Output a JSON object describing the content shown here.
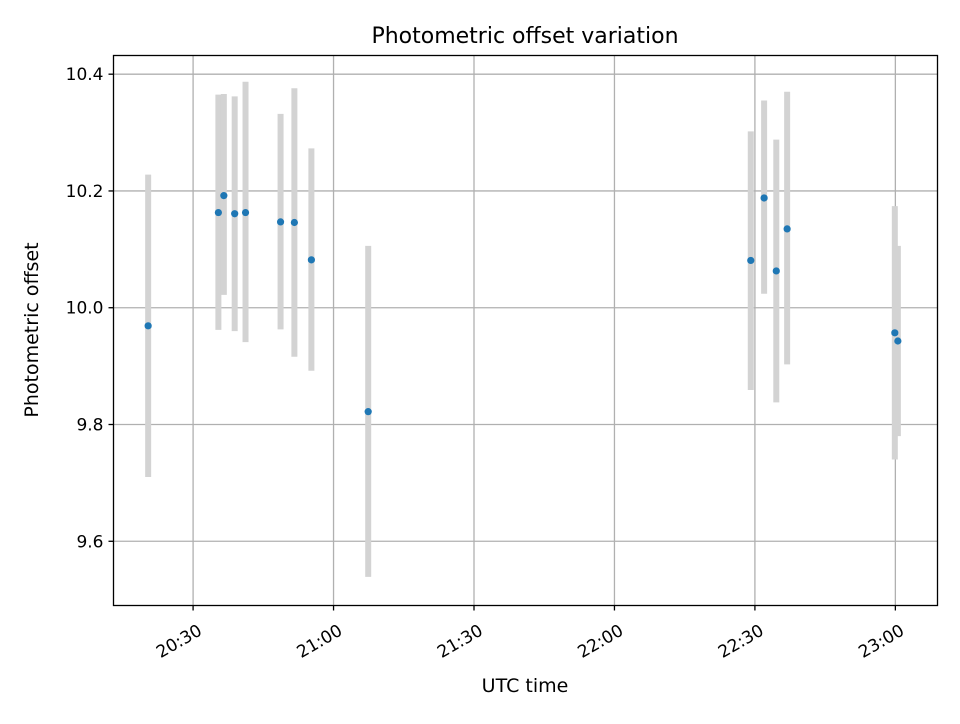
{
  "chart_data": {
    "type": "scatter",
    "title": "Photometric offset variation",
    "xlabel": "UTC time",
    "ylabel": "Photometric offset",
    "xlim": [
      "20:13",
      "23:09"
    ],
    "ylim": [
      9.49,
      10.432
    ],
    "x_ticks": [
      "20:30",
      "21:00",
      "21:30",
      "22:00",
      "22:30",
      "23:00"
    ],
    "y_ticks": [
      9.6,
      9.8,
      10.0,
      10.2,
      10.4
    ],
    "grid": true,
    "colors": {
      "points": "#1f77b4",
      "errorbars": "#d3d3d3",
      "grid": "#b0b0b0"
    },
    "points": [
      {
        "time": "20:20:24",
        "value": 9.969,
        "err_low": 9.71,
        "err_high": 10.228
      },
      {
        "time": "20:35:24",
        "value": 10.163,
        "err_low": 9.962,
        "err_high": 10.365
      },
      {
        "time": "20:36:34",
        "value": 10.192,
        "err_low": 10.022,
        "err_high": 10.366
      },
      {
        "time": "20:38:53",
        "value": 10.161,
        "err_low": 9.96,
        "err_high": 10.362
      },
      {
        "time": "20:41:12",
        "value": 10.163,
        "err_low": 9.941,
        "err_high": 10.387
      },
      {
        "time": "20:48:41",
        "value": 10.147,
        "err_low": 9.963,
        "err_high": 10.332
      },
      {
        "time": "20:51:38",
        "value": 10.146,
        "err_low": 9.916,
        "err_high": 10.376
      },
      {
        "time": "20:55:16",
        "value": 10.082,
        "err_low": 9.892,
        "err_high": 10.273
      },
      {
        "time": "21:07:24",
        "value": 9.822,
        "err_low": 9.539,
        "err_high": 10.106
      },
      {
        "time": "22:29:07",
        "value": 10.081,
        "err_low": 9.859,
        "err_high": 10.302
      },
      {
        "time": "22:31:58",
        "value": 10.188,
        "err_low": 10.024,
        "err_high": 10.355
      },
      {
        "time": "22:34:34",
        "value": 10.063,
        "err_low": 9.838,
        "err_high": 10.288
      },
      {
        "time": "22:36:53",
        "value": 10.135,
        "err_low": 9.903,
        "err_high": 10.37
      },
      {
        "time": "22:59:53",
        "value": 9.957,
        "err_low": 9.74,
        "err_high": 10.174
      },
      {
        "time": "23:00:32",
        "value": 9.943,
        "err_low": 9.78,
        "err_high": 10.106
      }
    ]
  }
}
